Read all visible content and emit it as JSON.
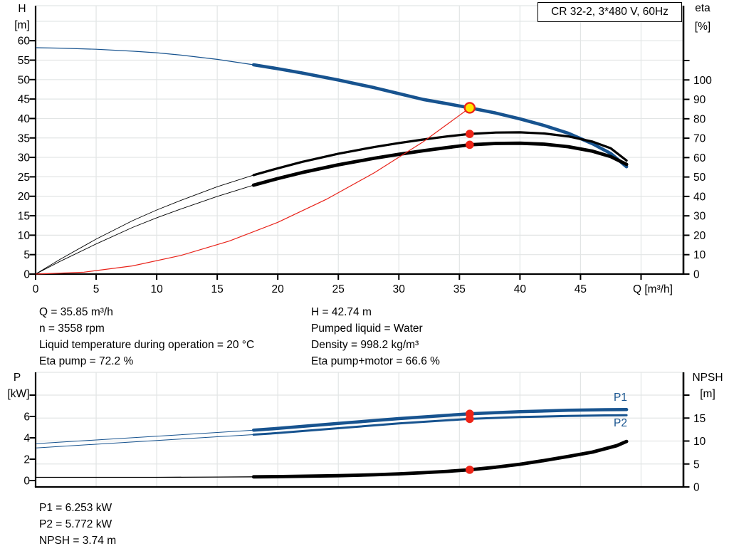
{
  "info_top_left": [
    "Q = 35.85 m³/h",
    "n = 3558 rpm",
    "Liquid temperature during operation = 20 °C",
    "Eta pump = 72.2 %"
  ],
  "info_top_right": [
    "H = 42.74 m",
    "Pumped liquid = Water",
    "Density = 998.2 kg/m³",
    "Eta pump+motor = 66.6 %"
  ],
  "info_bottom": [
    "P1 = 6.253 kW",
    "P2 = 5.772 kW",
    "NPSH = 3.74 m"
  ],
  "colors": {
    "curve_blue": "#17538f",
    "curve_black": "#000000",
    "curve_red": "#e8231a",
    "marker_red": "#ee2417",
    "marker_yellow": "#ffe600",
    "grid": "#e2e5e5",
    "axis": "#000000",
    "label_blue": "#17538f",
    "background": "#ffffff"
  },
  "chart_data": [
    {
      "id": "performance-curves",
      "type": "line",
      "title": "CR 32-2, 3*480 V, 60Hz",
      "x_axis": {
        "label": "Q [m³/h]",
        "min": 0,
        "max": 53.5,
        "tick_values": [
          0,
          5,
          10,
          15,
          20,
          25,
          30,
          35,
          40,
          45
        ],
        "unlabeled_ticks": [
          50
        ],
        "grid": true
      },
      "y_left": {
        "label": "H",
        "unit": "[m]",
        "min": 0,
        "max": 69,
        "tick_values": [
          0,
          5,
          10,
          15,
          20,
          25,
          30,
          35,
          40,
          45,
          50,
          55,
          60
        ],
        "grid_values": [
          5,
          10,
          15,
          20,
          25,
          30,
          35,
          40,
          45,
          50,
          55,
          60,
          65
        ]
      },
      "y_right": {
        "label": "eta",
        "unit": "[%]",
        "min": 0,
        "max": 138,
        "tick_values": [
          0,
          10,
          20,
          30,
          40,
          50,
          60,
          70,
          80,
          90,
          100
        ],
        "unlabeled_ticks": [
          110
        ],
        "grid_values": []
      },
      "series": [
        {
          "name": "head",
          "axis": "left",
          "color": "#17538f",
          "thin_width": 1.2,
          "thick_width": 4.6,
          "thick_from": 18,
          "x": [
            0,
            2,
            5,
            8,
            10,
            12,
            15,
            18,
            20,
            22,
            25,
            28,
            30,
            32,
            34,
            35.85,
            38,
            40,
            42,
            44,
            46,
            47.5,
            48.8
          ],
          "y": [
            58.2,
            58.1,
            57.8,
            57.3,
            56.9,
            56.3,
            55.2,
            53.8,
            52.8,
            51.7,
            49.9,
            47.9,
            46.4,
            44.9,
            43.8,
            42.74,
            41.4,
            39.9,
            38.2,
            36.2,
            33.5,
            31.0,
            27.6
          ]
        },
        {
          "name": "eta pump",
          "axis": "right",
          "color": "#000000",
          "thin_width": 0.9,
          "thick_width": 3.2,
          "thick_from": 18,
          "x": [
            0,
            2,
            5,
            8,
            10,
            12,
            15,
            18,
            20,
            22,
            25,
            28,
            30,
            32,
            34,
            35.85,
            38,
            40,
            42,
            44,
            46,
            47.5,
            48.8
          ],
          "y": [
            0,
            7.5,
            18,
            27.5,
            33,
            38,
            45,
            51,
            54.5,
            57.8,
            62,
            65.5,
            67.5,
            69.3,
            70.9,
            72.2,
            72.9,
            73.0,
            72.4,
            70.9,
            68.2,
            64.8,
            58.5
          ]
        },
        {
          "name": "eta pump+motor",
          "axis": "right",
          "color": "#000000",
          "thin_width": 0.9,
          "thick_width": 4.8,
          "thick_from": 18,
          "x": [
            0,
            2,
            5,
            8,
            10,
            12,
            15,
            18,
            20,
            22,
            25,
            28,
            30,
            32,
            34,
            35.85,
            38,
            40,
            42,
            44,
            46,
            47.5,
            48.8
          ],
          "y": [
            0,
            6.5,
            15.5,
            24,
            29,
            33.5,
            40,
            45.8,
            49.2,
            52.3,
            56.3,
            59.7,
            61.7,
            63.5,
            65.2,
            66.6,
            67.3,
            67.4,
            66.9,
            65.6,
            63.3,
            60.5,
            56.5
          ]
        },
        {
          "name": "system curve",
          "axis": "left",
          "color": "#e8231a",
          "thin_width": 1.2,
          "thick_width": 1.2,
          "thick_from": null,
          "x": [
            0,
            4,
            8,
            12,
            16,
            20,
            24,
            28,
            32,
            35.85
          ],
          "y": [
            0,
            0.5,
            2.1,
            4.8,
            8.5,
            13.3,
            19.2,
            26.1,
            34.0,
            42.74
          ]
        }
      ],
      "operating_points": [
        {
          "q": 35.85,
          "v": 42.74,
          "axis": "left",
          "style": "duty"
        },
        {
          "q": 35.85,
          "v": 72.2,
          "axis": "right",
          "style": "dot"
        },
        {
          "q": 35.85,
          "v": 66.6,
          "axis": "right",
          "style": "dot"
        }
      ]
    },
    {
      "id": "power-npsh-curves",
      "type": "line",
      "title": "",
      "x_axis": {
        "label": "",
        "min": 0,
        "max": 53.5,
        "tick_values": [],
        "unlabeled_ticks": [],
        "grid": true,
        "grid_positions": [
          5,
          10,
          15,
          20,
          25,
          30,
          35,
          40,
          45,
          50
        ]
      },
      "y_left": {
        "label": "P",
        "unit": "[kW]",
        "min": 0,
        "max": 10,
        "tick_values": [
          0,
          2,
          4,
          6
        ],
        "unlabeled_ticks": [
          8
        ],
        "grid_values": []
      },
      "y_right": {
        "label": "NPSH",
        "unit": "[m]",
        "min": 0,
        "max": 25,
        "tick_values": [
          0,
          5,
          10,
          15
        ],
        "unlabeled_ticks": [
          20
        ],
        "grid_values": [
          5,
          10,
          15,
          20
        ]
      },
      "series": [
        {
          "name": "P1",
          "axis": "left",
          "color": "#17538f",
          "thin_width": 1.0,
          "thick_width": 4.5,
          "thick_from": 18,
          "x": [
            0,
            5,
            10,
            15,
            18,
            20,
            25,
            30,
            35.85,
            40,
            44,
            47,
            48.8
          ],
          "y": [
            3.45,
            3.8,
            4.15,
            4.5,
            4.72,
            4.88,
            5.35,
            5.8,
            6.253,
            6.45,
            6.58,
            6.63,
            6.65
          ]
        },
        {
          "name": "P2",
          "axis": "left",
          "color": "#17538f",
          "thin_width": 1.0,
          "thick_width": 3.0,
          "thick_from": 18,
          "x": [
            0,
            5,
            10,
            15,
            18,
            20,
            25,
            30,
            35.85,
            40,
            44,
            47,
            48.8
          ],
          "y": [
            3.05,
            3.4,
            3.75,
            4.1,
            4.3,
            4.45,
            4.9,
            5.35,
            5.772,
            5.95,
            6.05,
            6.1,
            6.12
          ]
        },
        {
          "name": "NPSH",
          "axis": "right",
          "color": "#000000",
          "thin_width": 1.3,
          "thick_width": 4.8,
          "thick_from": 18,
          "x": [
            0,
            5,
            10,
            15,
            18,
            20,
            25,
            28,
            30,
            32,
            34,
            35.85,
            38,
            40,
            42,
            44,
            46,
            48,
            48.8
          ],
          "y": [
            2.1,
            2.1,
            2.1,
            2.15,
            2.2,
            2.25,
            2.45,
            2.65,
            2.85,
            3.1,
            3.4,
            3.74,
            4.3,
            4.95,
            5.75,
            6.65,
            7.6,
            9.0,
            9.9
          ]
        }
      ],
      "operating_points": [
        {
          "q": 35.85,
          "v": 6.253,
          "axis": "left",
          "style": "dot"
        },
        {
          "q": 35.85,
          "v": 5.772,
          "axis": "left",
          "style": "dot"
        },
        {
          "q": 35.85,
          "v": 3.74,
          "axis": "right",
          "style": "dot"
        }
      ]
    }
  ]
}
